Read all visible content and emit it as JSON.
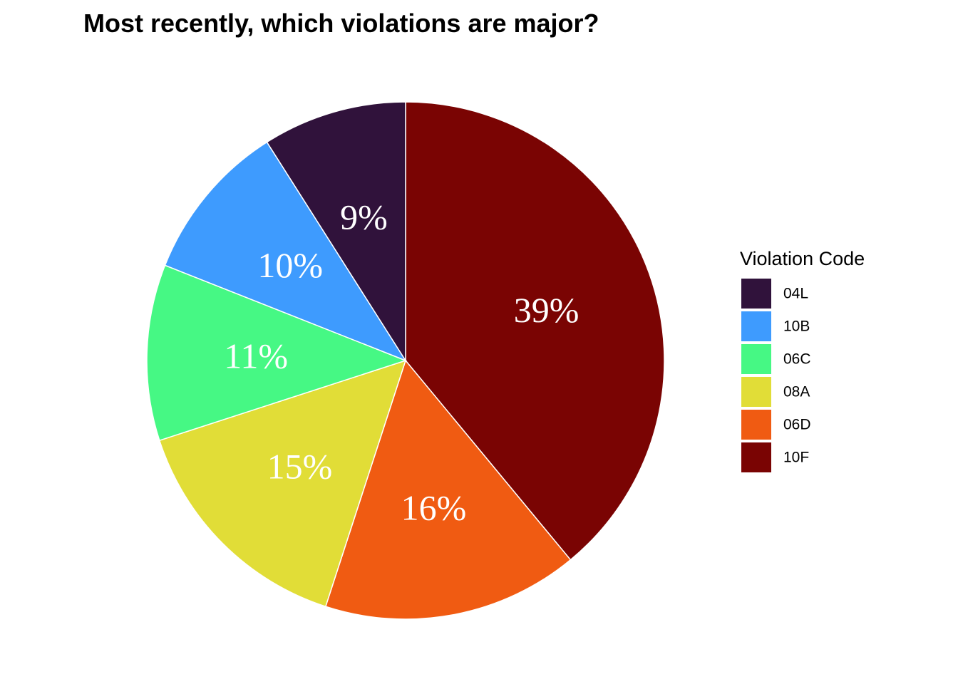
{
  "chart_data": {
    "type": "pie",
    "title": "Most recently, which violations are major?",
    "legend": {
      "title": "Violation Code",
      "placement": "right",
      "order": [
        "04L",
        "10B",
        "06C",
        "08A",
        "06D",
        "10F"
      ]
    },
    "slices": [
      {
        "label": "10F",
        "value": 39,
        "display": "39%",
        "color": "#7a0403"
      },
      {
        "label": "06D",
        "value": 16,
        "display": "16%",
        "color": "#f05b12"
      },
      {
        "label": "08A",
        "value": 15,
        "display": "15%",
        "color": "#e1dd37"
      },
      {
        "label": "06C",
        "value": 11,
        "display": "11%",
        "color": "#46f884"
      },
      {
        "label": "10B",
        "value": 10,
        "display": "10%",
        "color": "#3e9bfe"
      },
      {
        "label": "04L",
        "value": 9,
        "display": "9%",
        "color": "#30123b"
      }
    ]
  }
}
